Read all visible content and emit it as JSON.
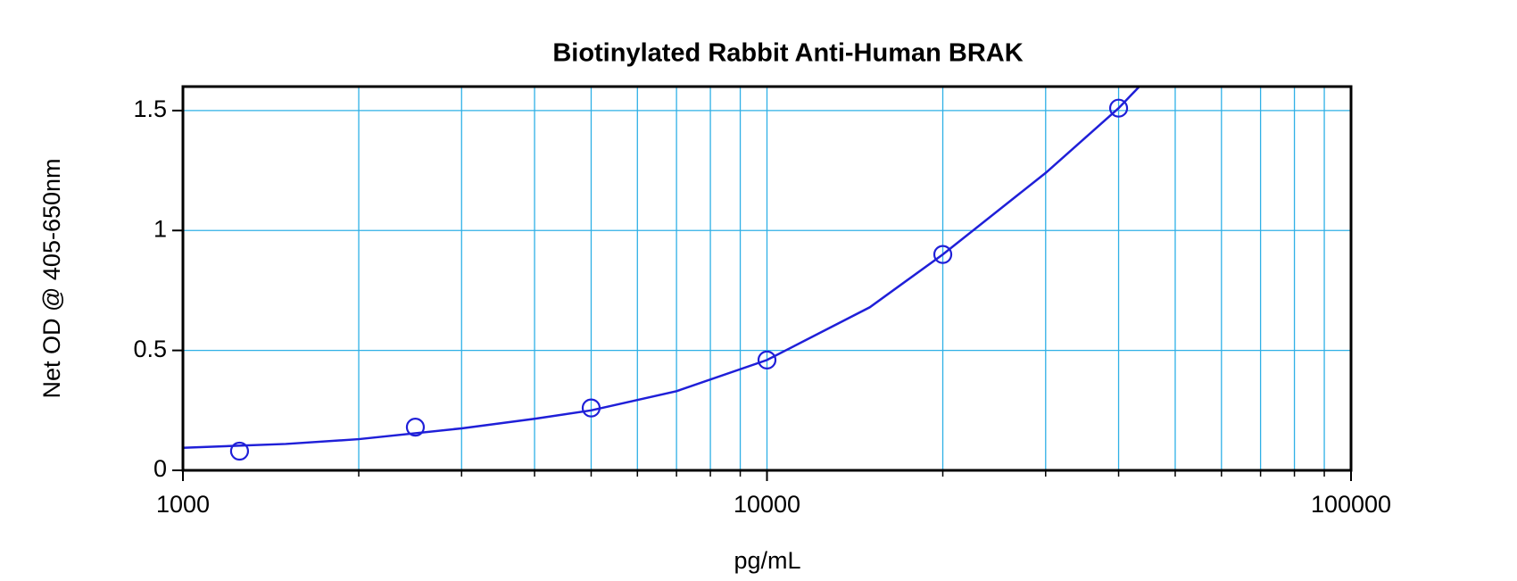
{
  "chart_data": {
    "type": "scatter",
    "title": "Biotinylated Rabbit Anti-Human BRAK",
    "xlabel": "pg/mL",
    "ylabel": "Net OD @ 405-650nm",
    "xscale": "log",
    "grid": true,
    "xlim": [
      1000,
      100000
    ],
    "ylim": [
      0,
      1.6
    ],
    "xticks": [
      1000,
      10000,
      100000
    ],
    "xminor": [
      2000,
      3000,
      4000,
      5000,
      6000,
      7000,
      8000,
      9000,
      20000,
      30000,
      40000,
      50000,
      60000,
      70000,
      80000,
      90000
    ],
    "yticks": [
      0,
      0.5,
      1,
      1.5
    ],
    "series": [
      {
        "color": "#1f1fd8",
        "marker": "circle",
        "x": [
          1250,
          2500,
          5000,
          10000,
          20000,
          40000
        ],
        "values": [
          0.08,
          0.18,
          0.26,
          0.46,
          0.9,
          1.51
        ]
      },
      {
        "color": "#1f1fd8",
        "line": true,
        "x": [
          1000,
          1500,
          2000,
          3000,
          4000,
          5000,
          7000,
          10000,
          15000,
          20000,
          30000,
          40000,
          43400
        ],
        "values": [
          0.094,
          0.11,
          0.13,
          0.175,
          0.215,
          0.25,
          0.33,
          0.46,
          0.68,
          0.9,
          1.24,
          1.51,
          1.6
        ]
      }
    ]
  }
}
